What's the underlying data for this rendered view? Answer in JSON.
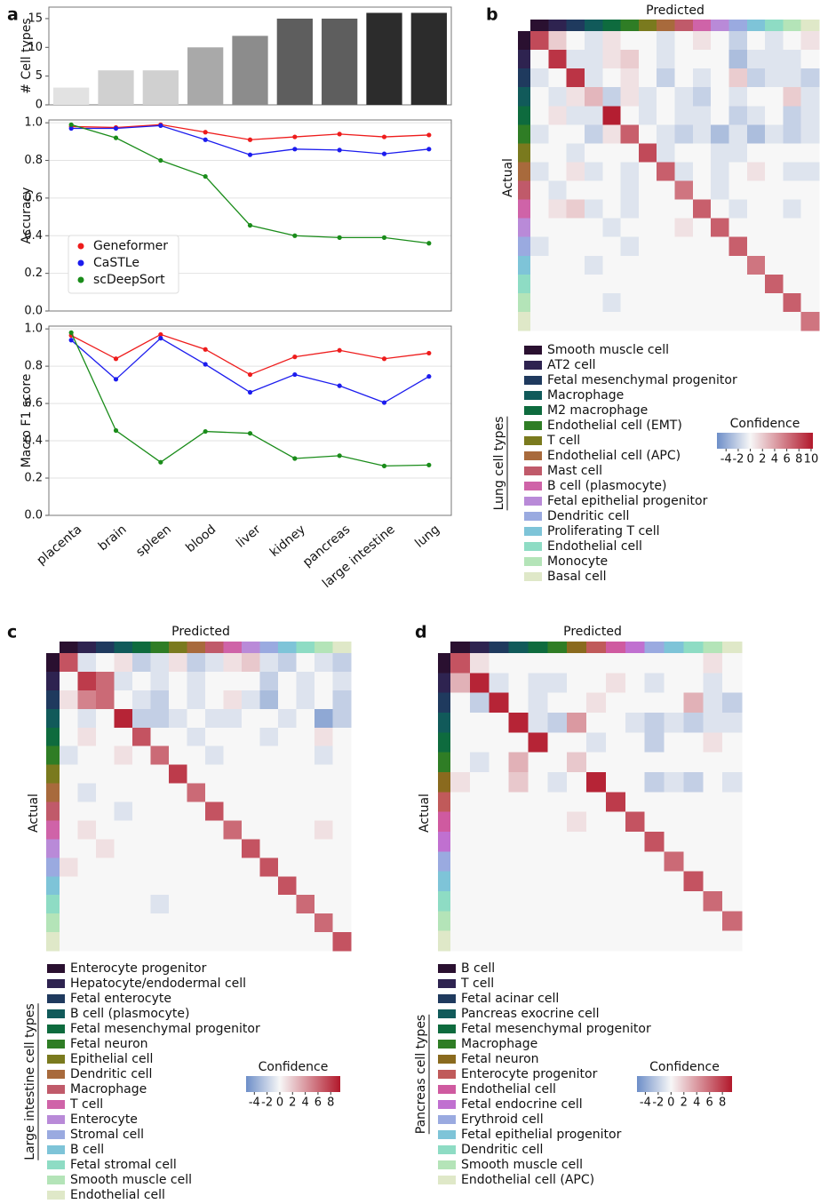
{
  "chart_data": [
    {
      "type": "bar",
      "panel_label": "a",
      "ylabel": "# Cell types",
      "values": [
        3,
        6,
        6,
        10,
        12,
        15,
        15,
        16,
        16
      ],
      "colors": [
        "#e2e2e2",
        "#d0d0d0",
        "#d0d0d0",
        "#a9a9a9",
        "#8c8c8c",
        "#5e5e5e",
        "#5e5e5e",
        "#2c2c2c",
        "#2c2c2c"
      ],
      "ylim": [
        0,
        17
      ],
      "yticks": [
        0,
        5,
        10,
        15
      ],
      "grid": false
    },
    {
      "type": "line",
      "ylabel": "Accuracy",
      "legend": "lower left",
      "grid": true,
      "ylim": [
        0,
        1.015
      ],
      "yticks": [
        {
          "value": 0,
          "label": "0.0"
        },
        {
          "value": 0.2,
          "label": "0.2"
        },
        {
          "value": 0.4,
          "label": "0.4"
        },
        {
          "value": 0.6,
          "label": "0.6"
        },
        {
          "value": 0.8,
          "label": "0.8"
        },
        {
          "value": 1,
          "label": "1.0"
        }
      ],
      "series": [
        {
          "name": "Geneformer",
          "color": "#ee1c1c",
          "values": [
            0.98,
            0.975,
            0.99,
            0.95,
            0.91,
            0.925,
            0.94,
            0.925,
            0.935
          ]
        },
        {
          "name": "CaSTLe",
          "color": "#1c1cee",
          "values": [
            0.97,
            0.97,
            0.985,
            0.91,
            0.83,
            0.86,
            0.855,
            0.835,
            0.86
          ]
        },
        {
          "name": "scDeepSort",
          "color": "#1a8c1a",
          "values": [
            0.99,
            0.92,
            0.8,
            0.715,
            0.455,
            0.4,
            0.39,
            0.39,
            0.36
          ]
        }
      ]
    },
    {
      "type": "line",
      "ylabel": "Macro F1 score",
      "grid": true,
      "categories": [
        "placenta",
        "brain",
        "spleen",
        "blood",
        "liver",
        "kidney",
        "pancreas",
        "large intestine",
        "lung"
      ],
      "ylim": [
        0,
        1.015
      ],
      "yticks": [
        {
          "value": 0,
          "label": "0.0"
        },
        {
          "value": 0.2,
          "label": "0.2"
        },
        {
          "value": 0.4,
          "label": "0.4"
        },
        {
          "value": 0.6,
          "label": "0.6"
        },
        {
          "value": 0.8,
          "label": "0.8"
        },
        {
          "value": 1,
          "label": "1.0"
        }
      ],
      "series": [
        {
          "color": "#ee1c1c",
          "values": [
            0.965,
            0.84,
            0.97,
            0.89,
            0.755,
            0.85,
            0.885,
            0.84,
            0.87
          ]
        },
        {
          "color": "#1c1cee",
          "values": [
            0.94,
            0.73,
            0.95,
            0.81,
            0.66,
            0.755,
            0.695,
            0.605,
            0.745
          ]
        },
        {
          "color": "#1a8c1a",
          "values": [
            0.98,
            0.455,
            0.285,
            0.45,
            0.44,
            0.305,
            0.32,
            0.265,
            0.27
          ]
        }
      ]
    },
    {
      "type": "heatmap",
      "panel_label": "b",
      "xlabel": "Predicted",
      "ylabel": "Actual",
      "legend_title": "Lung cell types",
      "classes": [
        {
          "name": "Smooth muscle cell",
          "color": "#2a1030"
        },
        {
          "name": "AT2 cell",
          "color": "#2e2350"
        },
        {
          "name": "Fetal mesenchymal progenitor",
          "color": "#1f3a5e"
        },
        {
          "name": "Macrophage",
          "color": "#115a5a"
        },
        {
          "name": "M2 macrophage",
          "color": "#0e6b3e"
        },
        {
          "name": "Endothelial cell (EMT)",
          "color": "#2f7d25"
        },
        {
          "name": "T cell",
          "color": "#7a7a1e"
        },
        {
          "name": "Endothelial cell (APC)",
          "color": "#a86a3c"
        },
        {
          "name": "Mast cell",
          "color": "#c05a6a"
        },
        {
          "name": "B cell (plasmocyte)",
          "color": "#cf63a8"
        },
        {
          "name": "Fetal epithelial progenitor",
          "color": "#b98ad8"
        },
        {
          "name": "Dendritic cell",
          "color": "#9aaae0"
        },
        {
          "name": "Proliferating T cell",
          "color": "#7ec4d8"
        },
        {
          "name": "Endothelial cell",
          "color": "#8edcc4"
        },
        {
          "name": "Monocyte",
          "color": "#b4e4b8"
        },
        {
          "name": "Basal cell",
          "color": "#dfe8c8"
        }
      ],
      "values": [
        [
          8,
          2,
          0,
          -1,
          1,
          0,
          0,
          -1,
          0,
          1,
          0,
          -2,
          0,
          -1,
          0,
          1
        ],
        [
          0,
          9,
          -1,
          -1,
          1,
          2,
          0,
          -1,
          0,
          0,
          0,
          -3,
          -1,
          -1,
          -1,
          0
        ],
        [
          -1,
          0,
          9,
          -1,
          0,
          1,
          0,
          -2,
          0,
          -1,
          0,
          2,
          -2,
          -1,
          -1,
          -2
        ],
        [
          0,
          -1,
          1,
          3,
          -2,
          1,
          -1,
          0,
          -1,
          -2,
          0,
          -1,
          0,
          0,
          2,
          -1
        ],
        [
          0,
          1,
          -1,
          -1,
          10,
          0,
          -1,
          0,
          -1,
          -1,
          0,
          -2,
          -1,
          0,
          -2,
          -1
        ],
        [
          -1,
          0,
          0,
          -2,
          1,
          7,
          0,
          -1,
          -2,
          -1,
          -3,
          -1,
          -3,
          -1,
          -2,
          -1
        ],
        [
          0,
          0,
          -1,
          0,
          0,
          0,
          8,
          -1,
          0,
          0,
          -1,
          -1,
          0,
          0,
          0,
          0
        ],
        [
          -1,
          0,
          1,
          -1,
          0,
          -1,
          0,
          7,
          -1,
          0,
          -1,
          0,
          1,
          0,
          -1,
          -1
        ],
        [
          0,
          -1,
          0,
          0,
          0,
          -1,
          0,
          0,
          6,
          0,
          -1,
          0,
          0,
          0,
          0,
          0
        ],
        [
          0,
          1,
          2,
          -1,
          0,
          -1,
          0,
          0,
          0,
          7,
          0,
          -1,
          0,
          0,
          -1,
          0
        ],
        [
          0,
          0,
          0,
          0,
          -1,
          0,
          0,
          0,
          1,
          0,
          7,
          0,
          0,
          0,
          0,
          0
        ],
        [
          -1,
          0,
          0,
          0,
          0,
          -1,
          0,
          0,
          0,
          0,
          0,
          7,
          0,
          0,
          0,
          0
        ],
        [
          0,
          0,
          0,
          -1,
          0,
          0,
          0,
          0,
          0,
          0,
          0,
          0,
          6,
          0,
          0,
          0
        ],
        [
          0,
          0,
          0,
          0,
          0,
          0,
          0,
          0,
          0,
          0,
          0,
          0,
          0,
          7,
          0,
          0
        ],
        [
          0,
          0,
          0,
          0,
          -1,
          0,
          0,
          0,
          0,
          0,
          0,
          0,
          0,
          0,
          7,
          0
        ],
        [
          0,
          0,
          0,
          0,
          0,
          0,
          0,
          0,
          0,
          0,
          0,
          0,
          0,
          0,
          0,
          6
        ]
      ],
      "colorbar_title": "Confidence",
      "zlim": [
        -5.5,
        10.3
      ],
      "zticks": [
        -4,
        -2,
        0,
        2,
        4,
        6,
        8,
        10
      ],
      "cmap": {
        "low": "#6d8ec8",
        "mid": "#f7f7f7",
        "high": "#b2182b"
      }
    },
    {
      "type": "heatmap",
      "panel_label": "c",
      "xlabel": "Predicted",
      "ylabel": "Actual",
      "legend_title": "Large intestine cell types",
      "classes": [
        {
          "name": "Enterocyte progenitor",
          "color": "#2a1030"
        },
        {
          "name": "Hepatocyte/endodermal cell",
          "color": "#2e2350"
        },
        {
          "name": "Fetal enterocyte",
          "color": "#1f3a5e"
        },
        {
          "name": "B cell (plasmocyte)",
          "color": "#115a5a"
        },
        {
          "name": "Fetal mesenchymal progenitor",
          "color": "#0e6b3e"
        },
        {
          "name": "Fetal neuron",
          "color": "#2f7d25"
        },
        {
          "name": "Epithelial cell",
          "color": "#7a7a1e"
        },
        {
          "name": "Dendritic cell",
          "color": "#a86a3c"
        },
        {
          "name": "Macrophage",
          "color": "#c05a6a"
        },
        {
          "name": "T cell",
          "color": "#cf63a8"
        },
        {
          "name": "Enterocyte",
          "color": "#b98ad8"
        },
        {
          "name": "Stromal cell",
          "color": "#9aaae0"
        },
        {
          "name": "B cell",
          "color": "#7ec4d8"
        },
        {
          "name": "Fetal stromal cell",
          "color": "#8edcc4"
        },
        {
          "name": "Smooth muscle cell",
          "color": "#b4e4b8"
        },
        {
          "name": "Endothelial cell",
          "color": "#dfe8c8"
        }
      ],
      "values": [
        [
          7,
          -1,
          0,
          1,
          -2,
          -1,
          1,
          -2,
          -1,
          1,
          2,
          -1,
          -2,
          0,
          -1,
          -2
        ],
        [
          0,
          8,
          6,
          -1,
          0,
          -1,
          0,
          -1,
          0,
          0,
          0,
          -2,
          0,
          -1,
          0,
          -1
        ],
        [
          1,
          5,
          6,
          0,
          -1,
          -2,
          0,
          -1,
          0,
          1,
          -1,
          -3,
          0,
          -1,
          0,
          -2
        ],
        [
          0,
          -1,
          0,
          9,
          -2,
          -2,
          -1,
          0,
          -1,
          -1,
          0,
          0,
          -1,
          0,
          -4,
          -2
        ],
        [
          0,
          1,
          0,
          0,
          7,
          0,
          0,
          -1,
          0,
          0,
          0,
          -1,
          0,
          0,
          1,
          0
        ],
        [
          -1,
          0,
          0,
          1,
          0,
          6,
          0,
          0,
          -1,
          0,
          0,
          0,
          0,
          0,
          -1,
          0
        ],
        [
          0,
          0,
          0,
          0,
          0,
          0,
          8,
          0,
          0,
          0,
          0,
          0,
          0,
          0,
          0,
          0
        ],
        [
          0,
          -1,
          0,
          0,
          0,
          0,
          0,
          6,
          0,
          0,
          0,
          0,
          0,
          0,
          0,
          0
        ],
        [
          0,
          0,
          0,
          -1,
          0,
          0,
          0,
          0,
          7,
          0,
          0,
          0,
          0,
          0,
          0,
          0
        ],
        [
          0,
          1,
          0,
          0,
          0,
          0,
          0,
          0,
          0,
          6,
          0,
          0,
          0,
          0,
          1,
          0
        ],
        [
          0,
          0,
          1,
          0,
          0,
          0,
          0,
          0,
          0,
          0,
          7,
          0,
          0,
          0,
          0,
          0
        ],
        [
          1,
          0,
          0,
          0,
          0,
          0,
          0,
          0,
          0,
          0,
          0,
          7,
          0,
          0,
          0,
          0
        ],
        [
          0,
          0,
          0,
          0,
          0,
          0,
          0,
          0,
          0,
          0,
          0,
          0,
          7,
          0,
          0,
          0
        ],
        [
          0,
          0,
          0,
          0,
          0,
          -1,
          0,
          0,
          0,
          0,
          0,
          0,
          0,
          6,
          0,
          0
        ],
        [
          0,
          0,
          0,
          0,
          0,
          0,
          0,
          0,
          0,
          0,
          0,
          0,
          0,
          0,
          6,
          0
        ],
        [
          0,
          0,
          0,
          0,
          0,
          0,
          0,
          0,
          0,
          0,
          0,
          0,
          0,
          0,
          0,
          7
        ]
      ],
      "colorbar_title": "Confidence",
      "zlim": [
        -5.3,
        9.5
      ],
      "zticks": [
        -4,
        -2,
        0,
        2,
        4,
        6,
        8
      ],
      "cmap": {
        "low": "#6d8ec8",
        "mid": "#f7f7f7",
        "high": "#b2182b"
      }
    },
    {
      "type": "heatmap",
      "panel_label": "d",
      "xlabel": "Predicted",
      "ylabel": "Actual",
      "legend_title": "Pancreas cell types",
      "classes": [
        {
          "name": "B cell",
          "color": "#2a1030"
        },
        {
          "name": "T cell",
          "color": "#2e2350"
        },
        {
          "name": "Fetal acinar cell",
          "color": "#1f3a5e"
        },
        {
          "name": "Pancreas exocrine cell",
          "color": "#115a5a"
        },
        {
          "name": "Fetal mesenchymal progenitor",
          "color": "#0e6b3e"
        },
        {
          "name": "Macrophage",
          "color": "#2f7d25"
        },
        {
          "name": "Fetal neuron",
          "color": "#8a6a1e"
        },
        {
          "name": "Enterocyte progenitor",
          "color": "#c05a5a"
        },
        {
          "name": "Endothelial cell",
          "color": "#cf5aa0"
        },
        {
          "name": "Fetal endocrine cell",
          "color": "#c070d0"
        },
        {
          "name": "Erythroid cell",
          "color": "#9aaae0"
        },
        {
          "name": "Fetal epithelial progenitor",
          "color": "#7ec4d8"
        },
        {
          "name": "Dendritic cell",
          "color": "#8edcc4"
        },
        {
          "name": "Smooth muscle cell",
          "color": "#b4e4b8"
        },
        {
          "name": "Endothelial cell (APC)",
          "color": "#dfe8c8"
        }
      ],
      "values": [
        [
          7,
          1,
          0,
          0,
          0,
          0,
          0,
          0,
          0,
          0,
          0,
          0,
          0,
          1,
          0
        ],
        [
          3,
          9,
          -1,
          0,
          -1,
          -1,
          0,
          0,
          1,
          0,
          -1,
          0,
          0,
          -1,
          0
        ],
        [
          0,
          -2,
          9,
          0,
          -1,
          0,
          0,
          1,
          0,
          0,
          0,
          0,
          3,
          -1,
          -2
        ],
        [
          0,
          0,
          0,
          9,
          -1,
          -2,
          4,
          0,
          0,
          -1,
          -2,
          -1,
          -2,
          -1,
          -1
        ],
        [
          0,
          0,
          0,
          0,
          9,
          0,
          0,
          -1,
          0,
          0,
          -2,
          0,
          0,
          1,
          0
        ],
        [
          0,
          -1,
          0,
          3,
          0,
          0,
          2,
          0,
          0,
          0,
          0,
          0,
          0,
          0,
          0
        ],
        [
          1,
          0,
          0,
          2,
          0,
          -1,
          0,
          9,
          0,
          0,
          -2,
          -1,
          -2,
          0,
          -1
        ],
        [
          0,
          0,
          0,
          0,
          0,
          0,
          0,
          0,
          8,
          0,
          0,
          0,
          0,
          0,
          0
        ],
        [
          0,
          0,
          0,
          0,
          0,
          0,
          1,
          0,
          0,
          7,
          0,
          0,
          0,
          0,
          0
        ],
        [
          0,
          0,
          0,
          0,
          0,
          0,
          0,
          0,
          0,
          0,
          7,
          0,
          0,
          0,
          0
        ],
        [
          0,
          0,
          0,
          0,
          0,
          0,
          0,
          0,
          0,
          0,
          0,
          6,
          0,
          0,
          0
        ],
        [
          0,
          0,
          0,
          0,
          0,
          0,
          0,
          0,
          0,
          0,
          0,
          0,
          7,
          0,
          0
        ],
        [
          0,
          0,
          0,
          0,
          0,
          0,
          0,
          0,
          0,
          0,
          0,
          0,
          0,
          6,
          0
        ],
        [
          0,
          0,
          0,
          0,
          0,
          0,
          0,
          0,
          0,
          0,
          0,
          0,
          0,
          0,
          6
        ],
        [
          0,
          0,
          0,
          0,
          0,
          0,
          0,
          0,
          0,
          0,
          0,
          0,
          0,
          0,
          0
        ]
      ],
      "colorbar_title": "Confidence",
      "zlim": [
        -5.3,
        9.5
      ],
      "zticks": [
        -4,
        -2,
        0,
        2,
        4,
        6,
        8
      ],
      "cmap": {
        "low": "#6d8ec8",
        "mid": "#f7f7f7",
        "high": "#b2182b"
      }
    }
  ]
}
